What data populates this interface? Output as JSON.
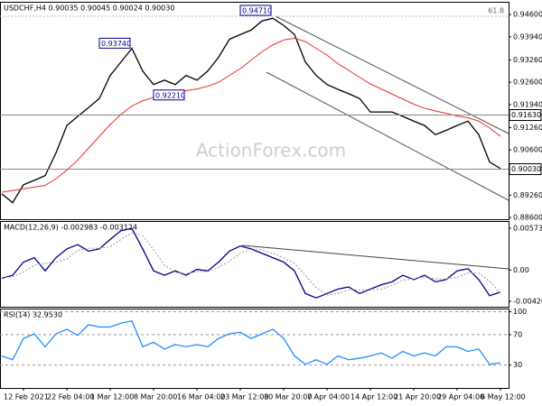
{
  "chart_data": [
    {
      "type": "line",
      "title": "USDCHF,H4 0.90035 0.90045 0.90024 0.90030",
      "watermark": "ActionForex.com",
      "fib_label": "61.8",
      "ylim": [
        0.8855,
        0.9495
      ],
      "yticks": [
        {
          "value": 0.946,
          "label": "0.94600"
        },
        {
          "value": 0.9394,
          "label": "0.93940"
        },
        {
          "value": 0.9326,
          "label": "0.93260"
        },
        {
          "value": 0.926,
          "label": "0.92600"
        },
        {
          "value": 0.9194,
          "label": "0.91940"
        },
        {
          "value": 0.9126,
          "label": "0.91260"
        },
        {
          "value": 0.906,
          "label": "0.90600"
        },
        {
          "value": 0.8926,
          "label": "0.89260"
        },
        {
          "value": 0.886,
          "label": "0.88600"
        }
      ],
      "series": [
        {
          "color": "#000000",
          "values": [
            0.893,
            0.8904,
            0.8957,
            0.897,
            0.8984,
            0.9051,
            0.9132,
            0.9159,
            0.9185,
            0.9212,
            0.928,
            0.932,
            0.936,
            0.9293,
            0.9253,
            0.9266,
            0.9253,
            0.928,
            0.9266,
            0.9293,
            0.9334,
            0.9387,
            0.9401,
            0.9414,
            0.9441,
            0.9449,
            0.9428,
            0.9401,
            0.932,
            0.928,
            0.9253,
            0.9239,
            0.9226,
            0.9212,
            0.9172,
            0.9172,
            0.9172,
            0.9159,
            0.9145,
            0.9132,
            0.9105,
            0.9118,
            0.9132,
            0.9145,
            0.9105,
            0.9024,
            0.9005
          ]
        },
        {
          "color": "#e8302a",
          "values": [
            0.8935,
            0.894,
            0.8945,
            0.895,
            0.8955,
            0.8975,
            0.9,
            0.903,
            0.9065,
            0.91,
            0.9135,
            0.9165,
            0.919,
            0.9205,
            0.9215,
            0.9222,
            0.9228,
            0.9235,
            0.924,
            0.9248,
            0.926,
            0.928,
            0.93,
            0.9325,
            0.935,
            0.937,
            0.9385,
            0.939,
            0.938,
            0.936,
            0.934,
            0.9315,
            0.9295,
            0.9275,
            0.9255,
            0.924,
            0.9225,
            0.921,
            0.9195,
            0.9183,
            0.9175,
            0.9168,
            0.916,
            0.9155,
            0.9145,
            0.9125,
            0.91
          ]
        }
      ],
      "levels": [
        {
          "value": 0.9163,
          "label": "0.91630"
        },
        {
          "value": 0.9003,
          "label": "0.90030"
        }
      ],
      "annotations": [
        {
          "text": "0.94710",
          "x": 25,
          "y": 0.9471
        },
        {
          "text": "0.93740",
          "x": 12,
          "y": 0.9374
        },
        {
          "text": "0.92210",
          "x": 17,
          "y": 0.9221
        }
      ]
    },
    {
      "type": "line",
      "title": "MACD(12,26,9) -0.002983 -0.003124",
      "ylim": [
        -0.00501,
        0.00659
      ],
      "yticks": [
        0.005739,
        {
          "value": 0,
          "label": "0.00"
        },
        -0.004261
      ],
      "series": [
        {
          "color": "#00008b",
          "values": [
            -0.0011,
            -0.0007,
            0.0011,
            0.0017,
            -0.0001,
            0.0017,
            0.0029,
            0.0035,
            0.0026,
            0.0029,
            0.0042,
            0.0054,
            0.0057,
            0.0029,
            -0.0001,
            -0.0007,
            -0.0001,
            -0.0007,
            0.0001,
            -0.0001,
            0.0011,
            0.0026,
            0.0033,
            0.0029,
            0.0023,
            0.0017,
            0.0011,
            -0.0001,
            -0.0032,
            -0.0038,
            -0.0032,
            -0.0026,
            -0.0023,
            -0.0032,
            -0.0026,
            -0.002,
            -0.0016,
            -0.0007,
            -0.0013,
            -0.0007,
            -0.0016,
            -0.0013,
            -0.0001,
            0.0002,
            -0.0013,
            -0.0035,
            -0.003
          ]
        },
        {
          "color": "#999999",
          "dashed": true,
          "values": [
            -0.001,
            -0.0009,
            -0.0003,
            0.0007,
            0.0009,
            0.0011,
            0.0015,
            0.0027,
            0.003,
            0.003,
            0.0032,
            0.0042,
            0.0051,
            0.0047,
            0.0028,
            0.0007,
            -0.0003,
            -0.0005,
            -0.0002,
            -0.0002,
            0.0004,
            0.0012,
            0.0023,
            0.0029,
            0.0028,
            0.0023,
            0.0017,
            0.0009,
            -0.0007,
            -0.0024,
            -0.0034,
            -0.0032,
            -0.0027,
            -0.0027,
            -0.0027,
            -0.0026,
            -0.0021,
            -0.0014,
            -0.0012,
            -0.0009,
            -0.0012,
            -0.0012,
            -0.001,
            -0.0004,
            -0.0004,
            -0.0015,
            -0.0031
          ]
        }
      ]
    },
    {
      "type": "line",
      "title": "RSI(14) 32.9530",
      "ylim": [
        0,
        103
      ],
      "yticks": [
        30,
        70,
        100
      ],
      "grid": true,
      "categories": [
        null,
        null,
        "12 Feb 2021",
        null,
        null,
        null,
        "22 Feb 04:00",
        null,
        null,
        null,
        "1 Mar 12:00",
        null,
        null,
        null,
        "8 Mar 20:00",
        null,
        null,
        null,
        "16 Mar 04:00",
        null,
        null,
        null,
        "23 Mar 12:00",
        null,
        null,
        null,
        "30 Mar 20:00",
        null,
        null,
        null,
        "7 Apr 04:00",
        null,
        null,
        null,
        "14 Apr 12:00",
        null,
        null,
        null,
        "21 Apr 20:00",
        null,
        null,
        null,
        "29 Apr 04:00",
        null,
        null,
        null,
        "6 May 12:00"
      ],
      "series": [
        {
          "color": "#1e90ff",
          "values": [
            42,
            37,
            65,
            71,
            54,
            71,
            77,
            69,
            83,
            80,
            80,
            85,
            88,
            54,
            60,
            51,
            57,
            54,
            57,
            54,
            65,
            71,
            73,
            65,
            71,
            77,
            65,
            42,
            31,
            37,
            31,
            42,
            37,
            39,
            42,
            46,
            39,
            48,
            42,
            46,
            42,
            54,
            54,
            48,
            51,
            31,
            32.95
          ]
        }
      ]
    }
  ]
}
